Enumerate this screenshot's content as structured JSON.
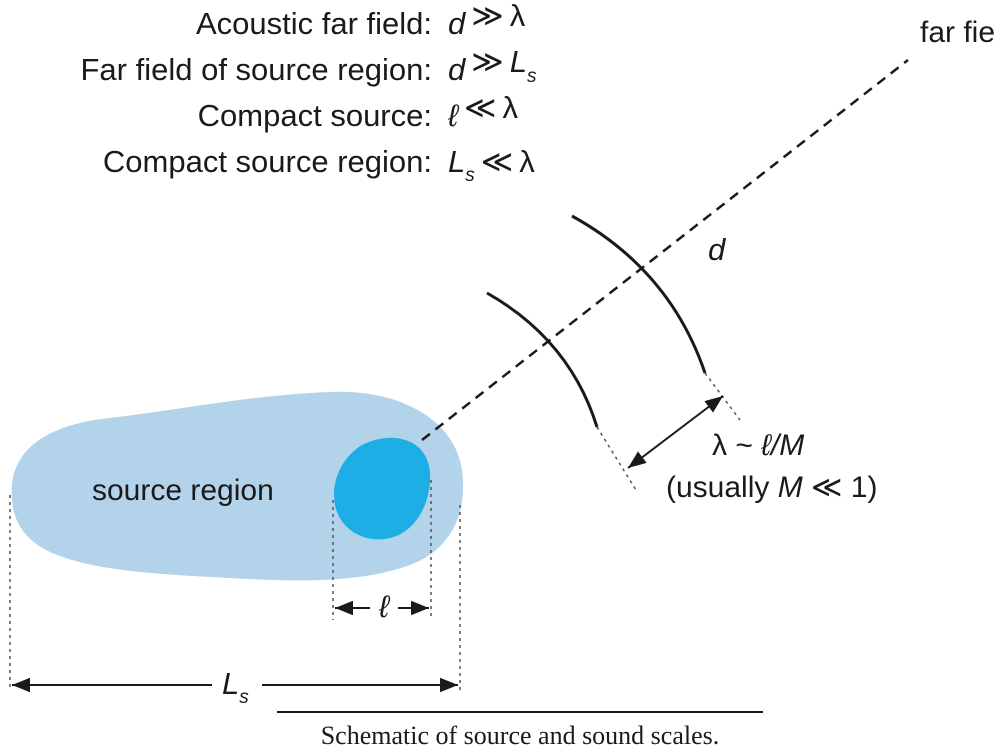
{
  "definitions": [
    {
      "label": "Acoustic far field:",
      "lhs": "d",
      "lhs_sub": "",
      "op": "≫",
      "rhs": "λ",
      "rhs_sub": ""
    },
    {
      "label": "Far field of source region:",
      "lhs": "d",
      "lhs_sub": "",
      "op": "≫",
      "rhs": "L",
      "rhs_sub": "s"
    },
    {
      "label": "Compact source:",
      "lhs": "ℓ",
      "lhs_sub": "",
      "op": "≪",
      "rhs": "λ",
      "rhs_sub": ""
    },
    {
      "label": "Compact source region:",
      "lhs": "L",
      "lhs_sub": "s",
      "op": "≪",
      "rhs": "λ",
      "rhs_sub": ""
    }
  ],
  "labels": {
    "far_field": "far field",
    "distance": "d",
    "source_region": "source region",
    "wavelength_prefix": "λ ~ ",
    "wavelength_expr": "ℓ/M",
    "wavelength_note_open": "(usually ",
    "wavelength_note_var": "M",
    "wavelength_note_rest": " ≪ 1)",
    "source_size": "ℓ",
    "region_size": "L",
    "region_size_sub": "s"
  },
  "caption": "Schematic of source and sound scales.",
  "colors": {
    "source_region": "#b3d3eb",
    "compact_source": "#1eaee6",
    "ink": "#1a1a1a"
  }
}
